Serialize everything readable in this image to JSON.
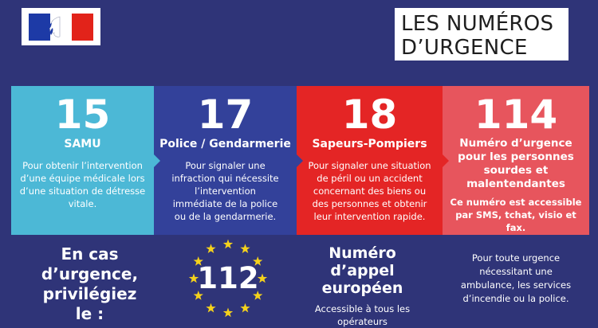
{
  "header": {
    "logo_icon": "marianne-logo-icon",
    "title_line1": "LES NUMÉROS",
    "title_line2": "D’URGENCE"
  },
  "cards": [
    {
      "number": "15",
      "name": "SAMU",
      "description": "Pour obtenir l’intervention d’une équipe médicale lors d’une situation de détresse vitale.",
      "color": "#4cb8d6"
    },
    {
      "number": "17",
      "name": "Police / Gendarmerie",
      "description": "Pour signaler une infraction qui nécessite l’intervention immédiate de la police ou de la gendarmerie.",
      "color": "#33419a"
    },
    {
      "number": "18",
      "name": "Sapeurs-Pompiers",
      "description": "Pour signaler une situation de péril ou un accident concernant des biens ou des personnes et obtenir leur intervention rapide.",
      "color": "#e42525"
    },
    {
      "number": "114",
      "name": "Numéro d’urgence pour les personnes sourdes et malentendantes",
      "description": "Ce numéro est accessible par SMS, tchat, visio et fax.",
      "color": "#e7555d"
    }
  ],
  "bottom": {
    "prefer_text": "En cas d’urgence, privilégiez le :",
    "european_number": "112",
    "european_stars_icon": "eu-stars-icon",
    "european_title": "Numéro d’appel européen",
    "european_subtitle": "Accessible à tous les opérateurs",
    "note": "Pour toute urgence nécessitant une ambulance, les services d’incendie ou la police."
  },
  "colors": {
    "background": "#2f3478",
    "star": "#f5d21c"
  }
}
